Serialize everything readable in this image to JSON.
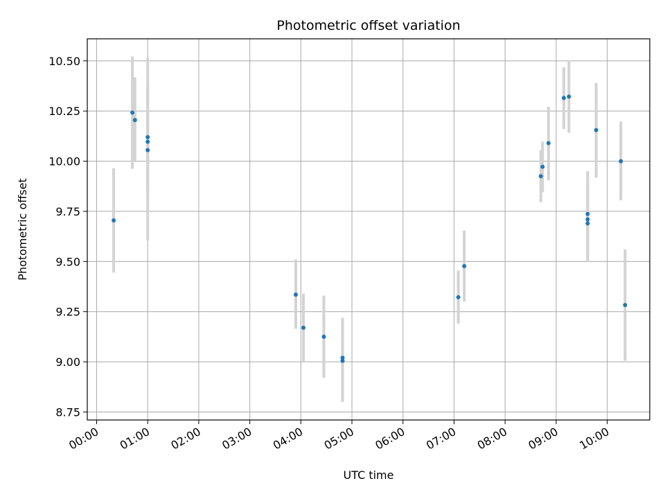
{
  "chart_data": {
    "type": "scatter",
    "title": "Photometric offset variation",
    "xlabel": "UTC time",
    "ylabel": "Photometric offset",
    "x_ticks": [
      "00:00",
      "01:00",
      "02:00",
      "03:00",
      "04:00",
      "05:00",
      "06:00",
      "07:00",
      "08:00",
      "09:00",
      "10:00"
    ],
    "y_ticks": [
      "8.75",
      "9.00",
      "9.25",
      "9.50",
      "9.75",
      "10.00",
      "10.25",
      "10.50"
    ],
    "xlim": [
      "23:49",
      "10:50"
    ],
    "ylim": [
      8.71,
      10.61
    ],
    "grid": true,
    "colors": {
      "points": "#1f77b4",
      "errorbars": "#d3d3d3",
      "grid": "#b0b0b0"
    },
    "points": [
      {
        "time": "00:20",
        "y": 9.705,
        "err_low": 9.445,
        "err_high": 9.965
      },
      {
        "time": "00:42",
        "y": 10.242,
        "err_low": 9.962,
        "err_high": 10.522
      },
      {
        "time": "00:45",
        "y": 10.205,
        "err_low": 9.995,
        "err_high": 10.418
      },
      {
        "time": "01:00",
        "y": 10.12,
        "err_low": 9.86,
        "err_high": 10.38
      },
      {
        "time": "01:00",
        "y": 10.097,
        "err_low": 9.837,
        "err_high": 10.357
      },
      {
        "time": "01:00",
        "y": 10.055,
        "err_low": 9.605,
        "err_high": 10.515
      },
      {
        "time": "03:54",
        "y": 9.335,
        "err_low": 9.165,
        "err_high": 9.51
      },
      {
        "time": "04:03",
        "y": 9.17,
        "err_low": 9.0,
        "err_high": 9.34
      },
      {
        "time": "04:27",
        "y": 9.125,
        "err_low": 8.92,
        "err_high": 9.33
      },
      {
        "time": "04:49",
        "y": 9.02,
        "err_low": 8.81,
        "err_high": 9.22
      },
      {
        "time": "04:49",
        "y": 9.005,
        "err_low": 8.8,
        "err_high": 9.205
      },
      {
        "time": "07:05",
        "y": 9.322,
        "err_low": 9.19,
        "err_high": 9.455
      },
      {
        "time": "07:12",
        "y": 9.477,
        "err_low": 9.3,
        "err_high": 9.655
      },
      {
        "time": "08:42",
        "y": 9.925,
        "err_low": 9.795,
        "err_high": 10.055
      },
      {
        "time": "08:44",
        "y": 9.972,
        "err_low": 9.845,
        "err_high": 10.098
      },
      {
        "time": "08:51",
        "y": 10.09,
        "err_low": 9.905,
        "err_high": 10.272
      },
      {
        "time": "09:09",
        "y": 10.315,
        "err_low": 10.16,
        "err_high": 10.468
      },
      {
        "time": "09:15",
        "y": 10.322,
        "err_low": 10.142,
        "err_high": 10.502
      },
      {
        "time": "09:37",
        "y": 9.737,
        "err_low": 9.518,
        "err_high": 9.95
      },
      {
        "time": "09:37",
        "y": 9.71,
        "err_low": 9.52,
        "err_high": 9.9
      },
      {
        "time": "09:37",
        "y": 9.69,
        "err_low": 9.5,
        "err_high": 9.88
      },
      {
        "time": "09:47",
        "y": 10.155,
        "err_low": 9.918,
        "err_high": 10.39
      },
      {
        "time": "10:16",
        "y": 10.0,
        "err_low": 9.805,
        "err_high": 10.198
      },
      {
        "time": "10:21",
        "y": 9.283,
        "err_low": 9.005,
        "err_high": 9.56
      }
    ]
  }
}
